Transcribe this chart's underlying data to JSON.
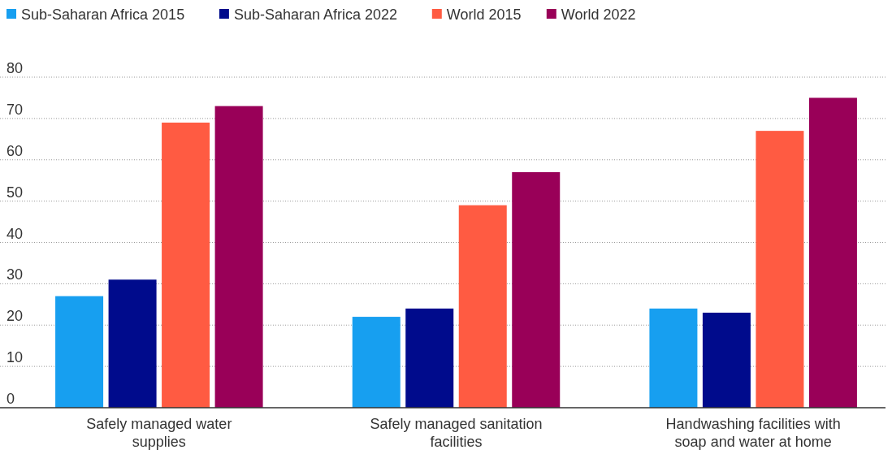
{
  "chart_data": {
    "type": "bar",
    "categories": [
      "Safely managed water supplies",
      "Safely managed sanitation facilities",
      "Handwashing facilities with soap and water at home"
    ],
    "series": [
      {
        "name": "Sub-Saharan Africa 2015",
        "color": "#179ff0",
        "values": [
          27,
          22,
          24
        ]
      },
      {
        "name": "Sub-Saharan Africa 2022",
        "color": "#000b8c",
        "values": [
          31,
          24,
          23
        ]
      },
      {
        "name": "World 2015",
        "color": "#ff5b42",
        "values": [
          69,
          49,
          67
        ]
      },
      {
        "name": "World 2022",
        "color": "#990058",
        "values": [
          73,
          57,
          75
        ]
      }
    ],
    "ylim": [
      0,
      80
    ],
    "yticks": [
      0,
      10,
      20,
      30,
      40,
      50,
      60,
      70,
      80
    ],
    "grid": "y",
    "legend": "top left"
  }
}
